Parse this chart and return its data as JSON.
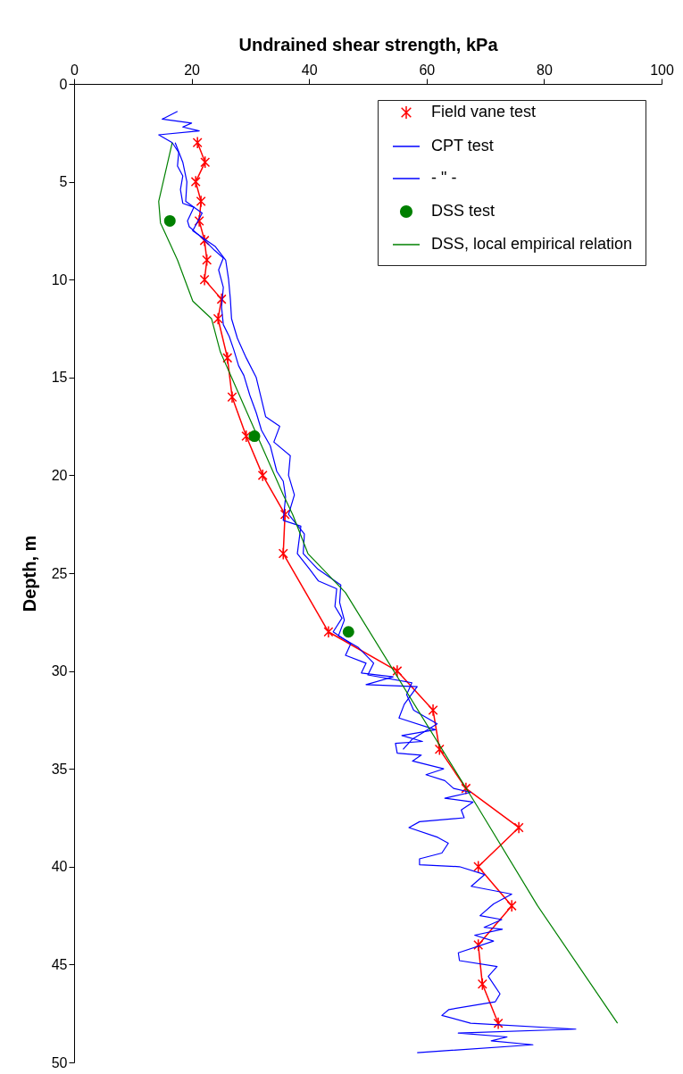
{
  "chart_data": {
    "type": "line",
    "xlabel": "Undrained shear strength, kPa",
    "ylabel": "Depth, m",
    "xlim": [
      0,
      100
    ],
    "xticks": [
      0,
      20,
      40,
      60,
      80,
      100
    ],
    "ylim": [
      50,
      0
    ],
    "yticks": [
      0,
      5,
      10,
      15,
      20,
      25,
      30,
      35,
      40,
      45,
      50
    ],
    "legend": "top right",
    "series": [
      {
        "name": "Field vane test",
        "marker": "cross",
        "color": "#ff0000",
        "x": [
          21,
          22.3,
          20.7,
          21.6,
          21.3,
          22.2,
          22.6,
          22.2,
          25.1,
          24.5,
          26.1,
          26.9,
          29.3,
          32.1,
          35.9,
          35.6,
          43.3,
          55,
          61.1,
          62.2,
          66.7,
          75.7,
          68.8,
          74.5,
          68.8,
          69.5,
          72.2
        ],
        "values": [
          3,
          4,
          5,
          6,
          7,
          8,
          9,
          10,
          11,
          12,
          14,
          16,
          18,
          20,
          22,
          24,
          28,
          30,
          32,
          34,
          36,
          38,
          40,
          42,
          44,
          46,
          48
        ]
      },
      {
        "name": "CPT test",
        "marker": "none",
        "color": "#0000ff",
        "x": [
          17.6,
          15,
          20,
          18.5,
          21.3,
          14.4,
          16.7,
          17.8,
          17.6,
          18.5,
          18.1,
          18.5,
          20.4,
          19.3,
          19.6,
          21.9,
          23.9,
          25.4,
          24.6,
          25.4,
          25.1,
          25.4,
          26.4,
          27.2,
          28,
          28.9,
          29.9,
          31,
          31.9,
          33.4,
          34.5,
          35.6,
          36,
          35.6,
          38.6,
          38,
          40.1,
          41.6,
          44.7,
          44.4,
          45.6,
          44.1,
          47.1,
          46.2,
          49.7,
          48.9,
          54.3,
          49.7,
          58.4,
          56.2,
          55.3,
          61.5,
          55.8,
          59.3,
          54.7,
          55,
          59.1,
          57.6,
          62.9,
          59.9,
          63.1,
          64.6,
          67.5,
          63.1,
          67.9,
          65.9,
          66.4,
          58.8,
          57,
          61.9,
          63.7,
          62.6,
          58.8,
          58.8,
          65.6,
          69.9,
          67.6,
          74.5,
          71.4,
          69.1,
          72.8,
          69.8,
          72.9,
          68.2,
          71.4,
          65.4,
          65.6,
          72,
          70.5,
          72.5,
          71.7,
          63.8,
          62.6,
          67.5,
          85.4,
          65.4,
          73.7,
          71,
          78.1,
          58.4
        ],
        "values": [
          1.4,
          1.8,
          2,
          2.2,
          2.4,
          2.6,
          3,
          3.5,
          4.2,
          4.7,
          5.4,
          6.1,
          6.3,
          7,
          7.3,
          7.9,
          8.5,
          8.9,
          9.5,
          10.4,
          11.4,
          12.3,
          12.9,
          13.6,
          14.4,
          14.9,
          15.9,
          16.8,
          17.7,
          18.5,
          19.8,
          20.3,
          21.1,
          22.3,
          22.6,
          24,
          24.8,
          25.4,
          25.8,
          26.7,
          27.3,
          28,
          28.6,
          29.2,
          29.6,
          30.1,
          30.3,
          30.7,
          30.8,
          31.7,
          32.4,
          33,
          33.3,
          33.6,
          33.7,
          34.2,
          34.3,
          34.6,
          35,
          35.3,
          35.6,
          36,
          36.2,
          36.5,
          36.7,
          37.1,
          37.5,
          37.7,
          38,
          38.5,
          38.8,
          39.3,
          39.6,
          39.9,
          40,
          40.4,
          41,
          41.4,
          41.9,
          42.5,
          42.7,
          43.1,
          43.2,
          43.5,
          43.8,
          44.4,
          44.8,
          45.1,
          45.6,
          46.5,
          46.9,
          47.3,
          47.6,
          48,
          48.3,
          48.5,
          48.7,
          48.9,
          49.1,
          49.5
        ]
      },
      {
        "name": "- \" -",
        "marker": "none",
        "color": "#0000ff",
        "x": [
          17.2,
          18.5,
          19.2,
          19,
          21.8,
          20.2,
          24,
          25.8,
          26.3,
          26.6,
          26.8,
          27.8,
          29.3,
          31,
          31.8,
          32.6,
          35,
          34,
          36.8,
          36.5,
          37.5,
          36.5,
          39.2,
          39,
          41.5,
          45.4,
          45.2,
          46,
          45,
          48.4,
          51,
          50,
          57.5,
          56.6,
          57.8,
          61.8,
          57.5,
          56
        ],
        "values": [
          3,
          4,
          5,
          6,
          6.6,
          7.5,
          8.3,
          9,
          10,
          11,
          12,
          13,
          14,
          15,
          16,
          17,
          17.5,
          18.3,
          19,
          20,
          21,
          22,
          23,
          24,
          24.8,
          25.6,
          26.5,
          27.4,
          28.2,
          28.8,
          29.6,
          30.2,
          30.6,
          31.2,
          32,
          32.7,
          33.5,
          34
        ]
      },
      {
        "name": "DSS test",
        "type": "scatter",
        "marker": "circle",
        "color": "#008000",
        "x": [
          16.3,
          30.7,
          46.7
        ],
        "values": [
          7,
          18,
          28
        ]
      },
      {
        "name": "DSS, local empirical relation",
        "marker": "none",
        "color": "#008000",
        "x": [
          16.7,
          14.4,
          14.7,
          17.6,
          20.2,
          23.4,
          24.9,
          35.6,
          37.2,
          39.8,
          46.2,
          68.8,
          78.9,
          92.5
        ],
        "values": [
          3,
          6,
          7.1,
          9,
          11.1,
          12,
          13.7,
          21,
          22,
          24,
          26,
          37,
          42,
          48
        ]
      }
    ]
  }
}
